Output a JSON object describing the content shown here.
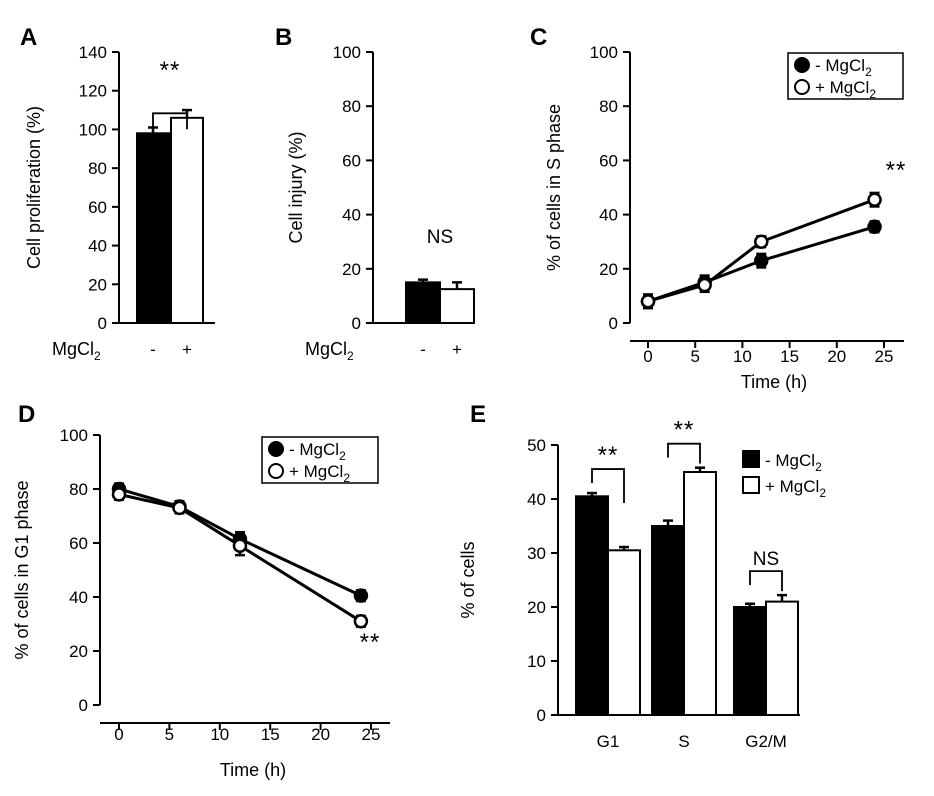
{
  "chart_data": [
    {
      "panel": "A",
      "type": "bar",
      "ylabel": "Cell proliferation  (%)",
      "xlabel": "MgCl",
      "xlabel_sub": "2",
      "ylim": [
        0,
        140
      ],
      "yticks": [
        "0",
        "20",
        "40",
        "60",
        "80",
        "100",
        "120",
        "140"
      ],
      "categories": [
        "-",
        "+"
      ],
      "values": [
        98,
        106
      ],
      "errors": [
        3,
        4
      ],
      "fills": [
        "#000000",
        "#ffffff"
      ],
      "significance": "**"
    },
    {
      "panel": "B",
      "type": "bar",
      "ylabel": "Cell injury  (%)",
      "xlabel": "MgCl",
      "xlabel_sub": "2",
      "ylim": [
        0,
        100
      ],
      "yticks": [
        "0",
        "20",
        "40",
        "60",
        "80",
        "100"
      ],
      "categories": [
        "-",
        "+"
      ],
      "values": [
        15,
        12.5
      ],
      "errors": [
        1,
        2.5
      ],
      "fills": [
        "#000000",
        "#ffffff"
      ],
      "significance": "NS"
    },
    {
      "panel": "C",
      "type": "line",
      "ylabel": "% of cells in S phase",
      "xlabel": "Time  (h)",
      "xlim": [
        0,
        25
      ],
      "ylim": [
        0,
        100
      ],
      "xticks": [
        "0",
        "5",
        "10",
        "15",
        "20",
        "25"
      ],
      "yticks": [
        "0",
        "20",
        "40",
        "60",
        "80",
        "100"
      ],
      "x": [
        0,
        6,
        12,
        24
      ],
      "series": [
        {
          "name": "- MgCl",
          "name_sub": "2",
          "values": [
            8,
            15,
            23,
            35.5
          ],
          "errors": [
            2.5,
            2.5,
            2.5,
            2
          ],
          "marker": "filled"
        },
        {
          "name": "+ MgCl",
          "name_sub": "2",
          "values": [
            8,
            14,
            30,
            45.5
          ],
          "errors": [
            2.5,
            2.5,
            2,
            2.5
          ],
          "marker": "open"
        }
      ],
      "significance": "**",
      "legend_position": "top-right"
    },
    {
      "panel": "D",
      "type": "line",
      "ylabel": "% of cells in G1 phase",
      "xlabel": "Time  (h)",
      "xlim": [
        0,
        25
      ],
      "ylim": [
        0,
        100
      ],
      "xticks": [
        "0",
        "5",
        "10",
        "15",
        "20",
        "25"
      ],
      "yticks": [
        "0",
        "20",
        "40",
        "60",
        "80",
        "100"
      ],
      "x": [
        0,
        6,
        12,
        24
      ],
      "series": [
        {
          "name": "- MgCl",
          "name_sub": "2",
          "values": [
            80,
            73.5,
            61.5,
            40.5
          ],
          "errors": [
            2,
            2,
            2.5,
            2
          ],
          "marker": "filled"
        },
        {
          "name": "+ MgCl",
          "name_sub": "2",
          "values": [
            78,
            73,
            59,
            31
          ],
          "errors": [
            2,
            2,
            3.5,
            2
          ],
          "marker": "open"
        }
      ],
      "significance": "**",
      "legend_position": "top-right"
    },
    {
      "panel": "E",
      "type": "bar",
      "ylabel": "% of cells",
      "ylim": [
        0,
        50
      ],
      "yticks": [
        "0",
        "10",
        "20",
        "30",
        "40",
        "50"
      ],
      "categories": [
        "G1",
        "S",
        "G2/M"
      ],
      "series": [
        {
          "name": "- MgCl",
          "name_sub": "2",
          "values": [
            40.5,
            35,
            20
          ],
          "errors": [
            0.6,
            1,
            0.6
          ],
          "fill": "#000000"
        },
        {
          "name": "+ MgCl",
          "name_sub": "2",
          "values": [
            30.5,
            45,
            21
          ],
          "errors": [
            0.6,
            0.8,
            1.2
          ],
          "fill": "#ffffff"
        }
      ],
      "significance": [
        "**",
        "**",
        "NS"
      ],
      "legend_position": "top-right"
    }
  ]
}
